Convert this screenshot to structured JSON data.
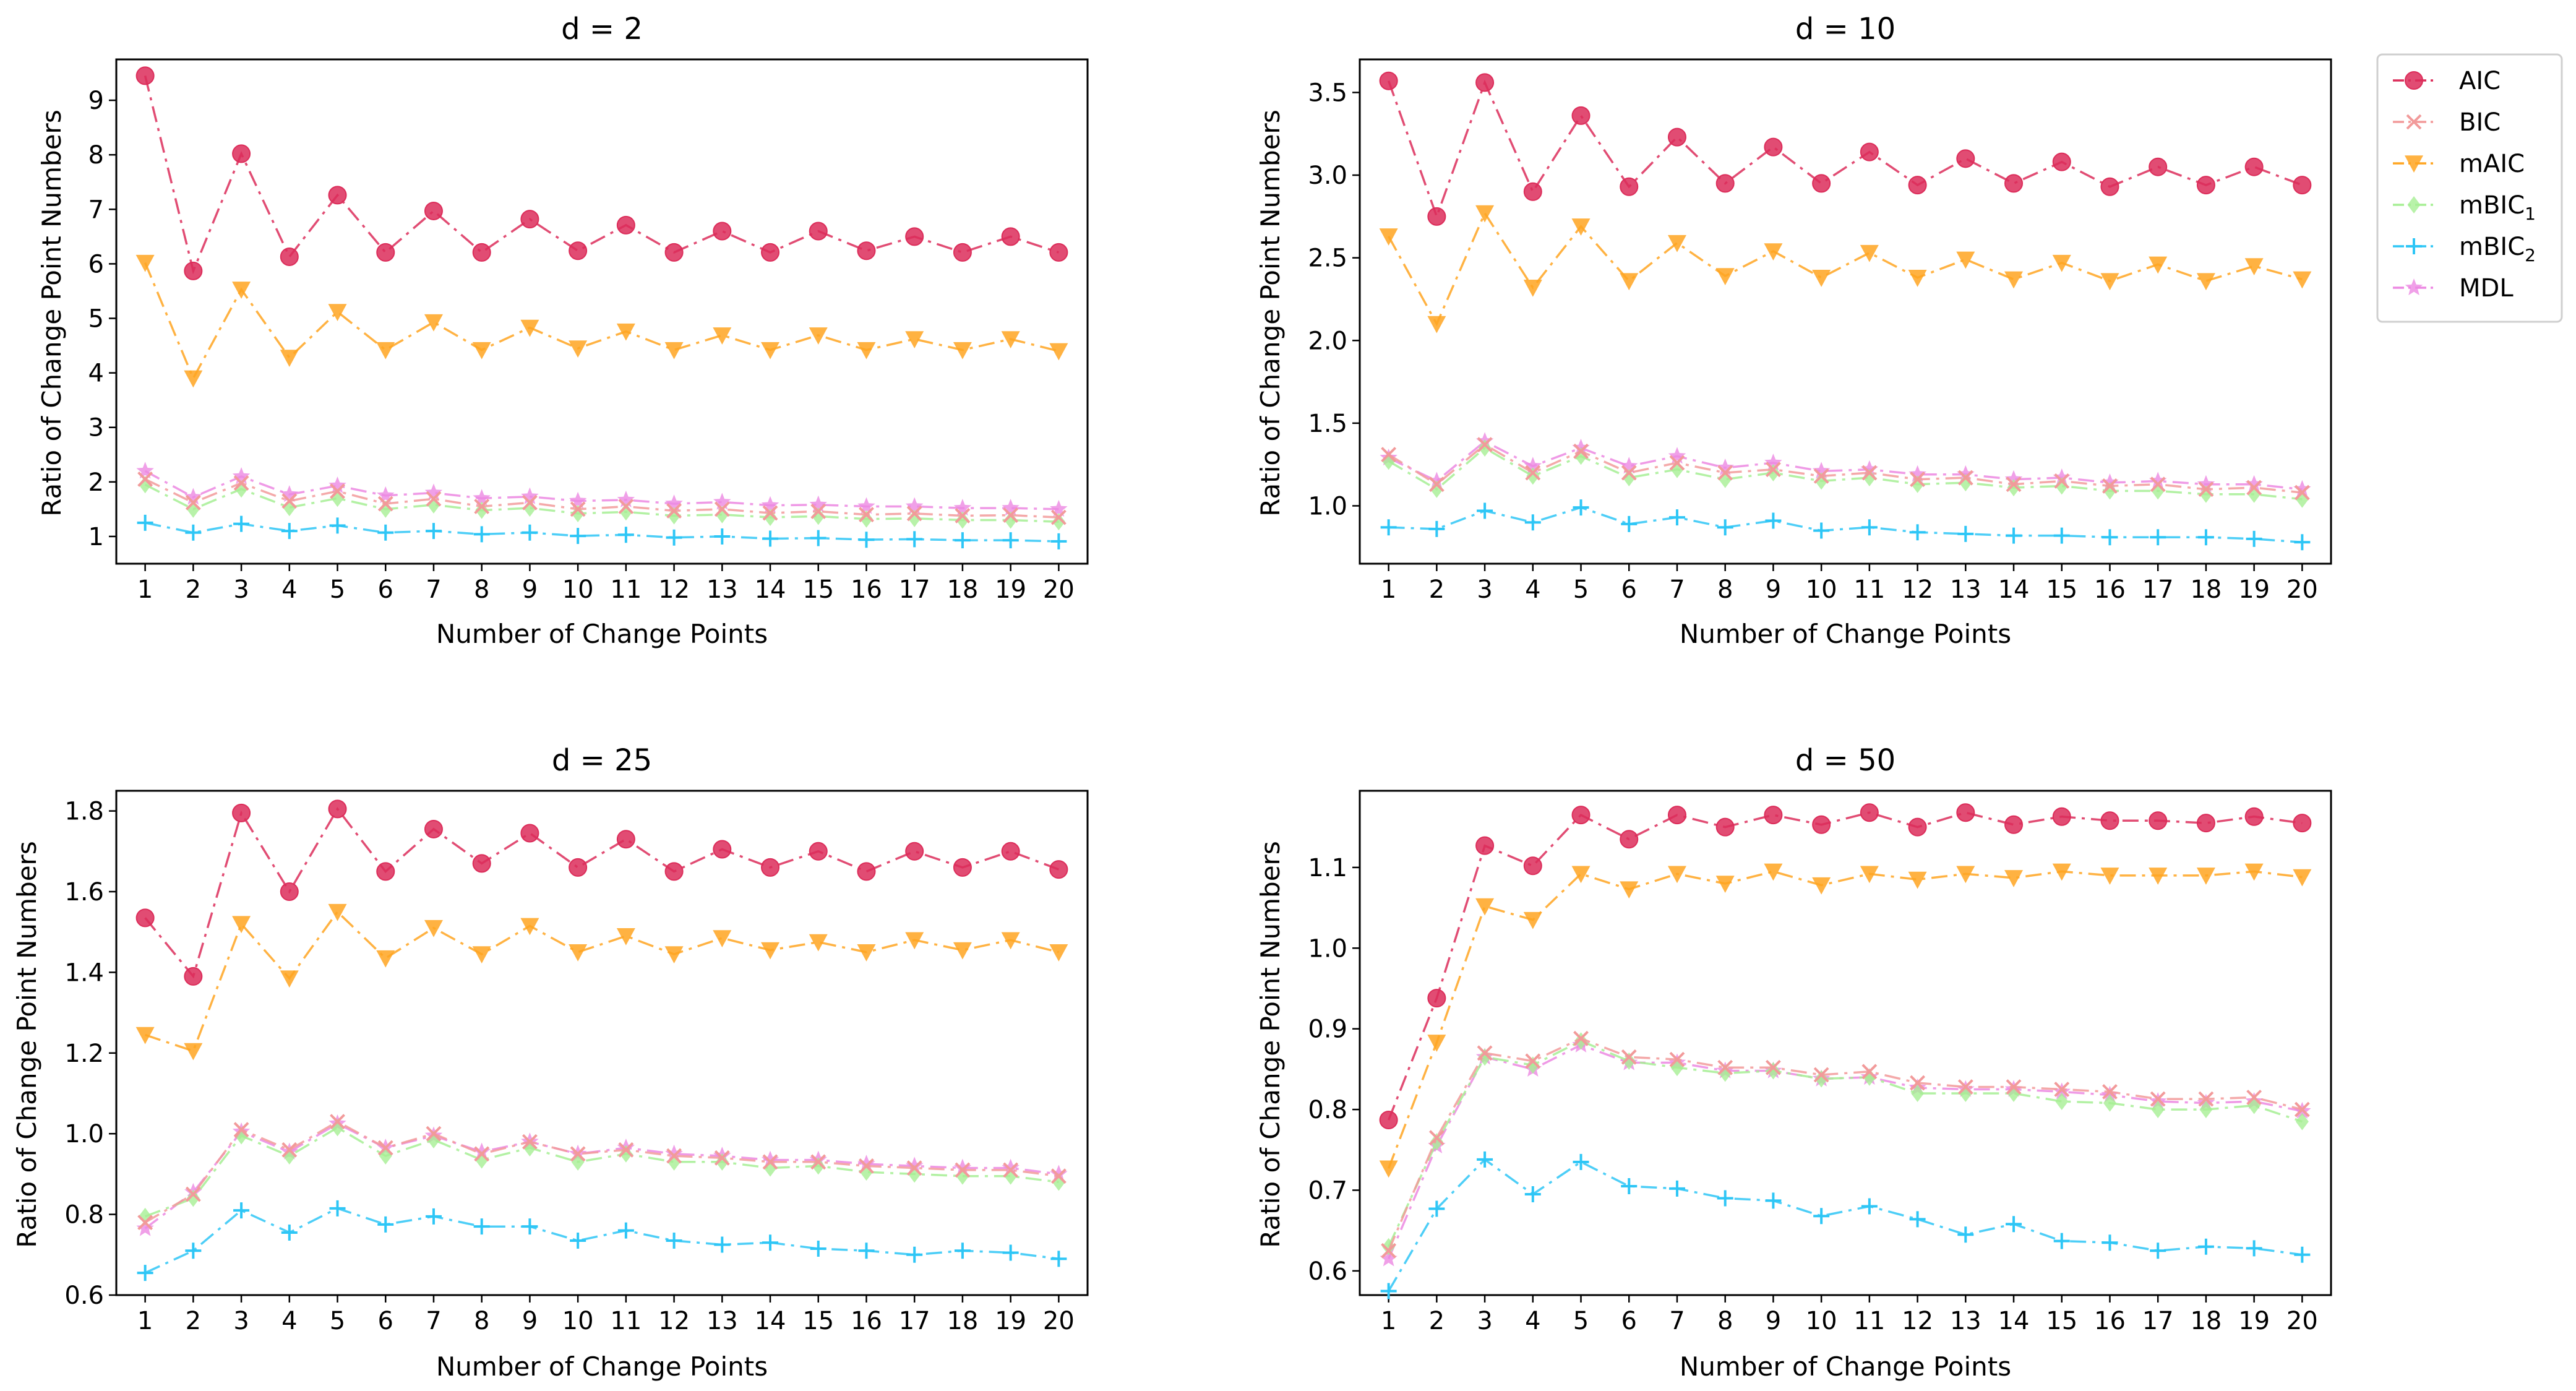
{
  "x_label": "Number of Change Points",
  "y_label": "Ratio of Change Point Numbers",
  "legend": [
    {
      "name": "AIC",
      "sub": "",
      "color": "#dc2d5a",
      "marker": "circle"
    },
    {
      "name": "BIC",
      "sub": "",
      "color": "#f29a9a",
      "marker": "x"
    },
    {
      "name": "mAIC",
      "sub": "",
      "color": "#ffa521",
      "marker": "triangle-down"
    },
    {
      "name": "mBIC",
      "sub": "1",
      "color": "#a6ef94",
      "marker": "diamond"
    },
    {
      "name": "mBIC",
      "sub": "2",
      "color": "#2ec6f6",
      "marker": "plus"
    },
    {
      "name": "MDL",
      "sub": "",
      "color": "#ec88e2",
      "marker": "star"
    }
  ],
  "chart_data": [
    {
      "type": "line",
      "title": "d = 2",
      "xlabel": "Number of Change Points",
      "ylabel": "Ratio of Change Point Numbers",
      "x": [
        1,
        2,
        3,
        4,
        5,
        6,
        7,
        8,
        9,
        10,
        11,
        12,
        13,
        14,
        15,
        16,
        17,
        18,
        19,
        20
      ],
      "ylim": [
        0.5,
        9.75
      ],
      "yticks": [
        1,
        2,
        3,
        4,
        5,
        6,
        7,
        8,
        9
      ],
      "ytick_labels": [
        "1",
        "2",
        "3",
        "4",
        "5",
        "6",
        "7",
        "8",
        "9"
      ],
      "series": [
        {
          "name": "AIC",
          "values": [
            9.45,
            5.87,
            8.02,
            6.13,
            7.26,
            6.21,
            6.97,
            6.21,
            6.82,
            6.24,
            6.71,
            6.21,
            6.6,
            6.21,
            6.6,
            6.24,
            6.5,
            6.21,
            6.5,
            6.21
          ]
        },
        {
          "name": "BIC",
          "values": [
            2.05,
            1.62,
            1.98,
            1.65,
            1.83,
            1.6,
            1.69,
            1.55,
            1.62,
            1.5,
            1.55,
            1.47,
            1.5,
            1.43,
            1.46,
            1.4,
            1.42,
            1.38,
            1.39,
            1.35
          ]
        },
        {
          "name": "mAIC",
          "values": [
            6.02,
            3.9,
            5.53,
            4.28,
            5.12,
            4.42,
            4.93,
            4.42,
            4.83,
            4.45,
            4.76,
            4.42,
            4.69,
            4.42,
            4.69,
            4.42,
            4.62,
            4.42,
            4.62,
            4.4
          ]
        },
        {
          "name": "mBIC1",
          "values": [
            1.95,
            1.5,
            1.87,
            1.53,
            1.7,
            1.5,
            1.58,
            1.48,
            1.52,
            1.42,
            1.45,
            1.38,
            1.4,
            1.35,
            1.37,
            1.32,
            1.33,
            1.3,
            1.3,
            1.27
          ]
        },
        {
          "name": "mBIC2",
          "values": [
            1.25,
            1.07,
            1.23,
            1.1,
            1.2,
            1.07,
            1.1,
            1.04,
            1.07,
            1.01,
            1.03,
            0.98,
            1.0,
            0.96,
            0.97,
            0.94,
            0.95,
            0.93,
            0.93,
            0.91
          ]
        },
        {
          "name": "MDL",
          "values": [
            2.2,
            1.72,
            2.1,
            1.77,
            1.93,
            1.75,
            1.8,
            1.7,
            1.73,
            1.65,
            1.67,
            1.6,
            1.63,
            1.57,
            1.58,
            1.55,
            1.55,
            1.52,
            1.52,
            1.5
          ]
        }
      ]
    },
    {
      "type": "line",
      "title": "d = 10",
      "xlabel": "Number of Change Points",
      "ylabel": "Ratio of Change Point Numbers",
      "x": [
        1,
        2,
        3,
        4,
        5,
        6,
        7,
        8,
        9,
        10,
        11,
        12,
        13,
        14,
        15,
        16,
        17,
        18,
        19,
        20
      ],
      "ylim": [
        0.65,
        3.7
      ],
      "yticks": [
        1.0,
        1.5,
        2.0,
        2.5,
        3.0,
        3.5
      ],
      "ytick_labels": [
        "1.0",
        "1.5",
        "2.0",
        "2.5",
        "3.0",
        "3.5"
      ],
      "series": [
        {
          "name": "AIC",
          "values": [
            3.57,
            2.75,
            3.56,
            2.9,
            3.36,
            2.93,
            3.23,
            2.95,
            3.17,
            2.95,
            3.14,
            2.94,
            3.1,
            2.95,
            3.08,
            2.93,
            3.05,
            2.94,
            3.05,
            2.94
          ]
        },
        {
          "name": "BIC",
          "values": [
            1.31,
            1.13,
            1.37,
            1.2,
            1.33,
            1.2,
            1.26,
            1.2,
            1.22,
            1.18,
            1.2,
            1.16,
            1.17,
            1.13,
            1.15,
            1.12,
            1.13,
            1.1,
            1.11,
            1.08
          ]
        },
        {
          "name": "mAIC",
          "values": [
            2.63,
            2.1,
            2.77,
            2.32,
            2.69,
            2.36,
            2.59,
            2.39,
            2.54,
            2.38,
            2.53,
            2.38,
            2.49,
            2.37,
            2.47,
            2.36,
            2.46,
            2.36,
            2.45,
            2.37
          ]
        },
        {
          "name": "mBIC1",
          "values": [
            1.27,
            1.1,
            1.35,
            1.18,
            1.3,
            1.17,
            1.22,
            1.16,
            1.2,
            1.15,
            1.17,
            1.13,
            1.14,
            1.11,
            1.12,
            1.09,
            1.09,
            1.07,
            1.07,
            1.04
          ]
        },
        {
          "name": "mBIC2",
          "values": [
            0.87,
            0.86,
            0.97,
            0.9,
            0.99,
            0.89,
            0.93,
            0.87,
            0.91,
            0.85,
            0.87,
            0.84,
            0.83,
            0.82,
            0.82,
            0.81,
            0.81,
            0.81,
            0.8,
            0.78
          ]
        },
        {
          "name": "MDL",
          "values": [
            1.29,
            1.15,
            1.39,
            1.24,
            1.35,
            1.24,
            1.3,
            1.23,
            1.26,
            1.21,
            1.22,
            1.19,
            1.19,
            1.16,
            1.17,
            1.14,
            1.15,
            1.13,
            1.13,
            1.1
          ]
        }
      ]
    },
    {
      "type": "line",
      "title": "d = 25",
      "xlabel": "Number of Change Points",
      "ylabel": "Ratio of Change Point Numbers",
      "x": [
        1,
        2,
        3,
        4,
        5,
        6,
        7,
        8,
        9,
        10,
        11,
        12,
        13,
        14,
        15,
        16,
        17,
        18,
        19,
        20
      ],
      "ylim": [
        0.6,
        1.85
      ],
      "yticks": [
        0.6,
        0.8,
        1.0,
        1.2,
        1.4,
        1.6,
        1.8
      ],
      "ytick_labels": [
        "0.6",
        "0.8",
        "1.0",
        "1.2",
        "1.4",
        "1.6",
        "1.8"
      ],
      "series": [
        {
          "name": "AIC",
          "values": [
            1.535,
            1.39,
            1.795,
            1.6,
            1.805,
            1.65,
            1.755,
            1.67,
            1.745,
            1.66,
            1.73,
            1.65,
            1.705,
            1.66,
            1.7,
            1.65,
            1.7,
            1.66,
            1.7,
            1.655
          ]
        },
        {
          "name": "BIC",
          "values": [
            0.78,
            0.85,
            1.01,
            0.96,
            1.03,
            0.965,
            1.0,
            0.95,
            0.98,
            0.95,
            0.96,
            0.945,
            0.94,
            0.93,
            0.93,
            0.92,
            0.915,
            0.91,
            0.91,
            0.895
          ]
        },
        {
          "name": "mAIC",
          "values": [
            1.245,
            1.205,
            1.52,
            1.385,
            1.55,
            1.435,
            1.51,
            1.445,
            1.515,
            1.45,
            1.49,
            1.445,
            1.485,
            1.455,
            1.475,
            1.45,
            1.48,
            1.455,
            1.48,
            1.45
          ]
        },
        {
          "name": "mBIC1",
          "values": [
            0.795,
            0.84,
            0.995,
            0.945,
            1.015,
            0.945,
            0.985,
            0.935,
            0.965,
            0.93,
            0.95,
            0.93,
            0.93,
            0.915,
            0.92,
            0.905,
            0.9,
            0.895,
            0.895,
            0.88
          ]
        },
        {
          "name": "mBIC2",
          "values": [
            0.655,
            0.71,
            0.81,
            0.755,
            0.815,
            0.775,
            0.795,
            0.77,
            0.77,
            0.735,
            0.76,
            0.735,
            0.725,
            0.73,
            0.715,
            0.71,
            0.7,
            0.71,
            0.705,
            0.69
          ]
        },
        {
          "name": "MDL",
          "values": [
            0.765,
            0.855,
            1.005,
            0.955,
            1.025,
            0.965,
            0.995,
            0.955,
            0.98,
            0.95,
            0.965,
            0.95,
            0.945,
            0.935,
            0.935,
            0.925,
            0.92,
            0.915,
            0.915,
            0.9
          ]
        }
      ]
    },
    {
      "type": "line",
      "title": "d = 50",
      "xlabel": "Number of Change Points",
      "ylabel": "Ratio of Change Point Numbers",
      "x": [
        1,
        2,
        3,
        4,
        5,
        6,
        7,
        8,
        9,
        10,
        11,
        12,
        13,
        14,
        15,
        16,
        17,
        18,
        19,
        20
      ],
      "ylim": [
        0.57,
        1.195
      ],
      "yticks": [
        0.6,
        0.7,
        0.8,
        0.9,
        1.0,
        1.1
      ],
      "ytick_labels": [
        "0.6",
        "0.7",
        "0.8",
        "0.9",
        "1.0",
        "1.1"
      ],
      "series": [
        {
          "name": "AIC",
          "values": [
            0.787,
            0.938,
            1.127,
            1.102,
            1.165,
            1.135,
            1.165,
            1.15,
            1.165,
            1.153,
            1.168,
            1.15,
            1.168,
            1.153,
            1.163,
            1.158,
            1.158,
            1.155,
            1.163,
            1.155
          ]
        },
        {
          "name": "BIC",
          "values": [
            0.625,
            0.765,
            0.87,
            0.86,
            0.888,
            0.865,
            0.862,
            0.852,
            0.852,
            0.843,
            0.847,
            0.833,
            0.828,
            0.828,
            0.825,
            0.822,
            0.813,
            0.813,
            0.815,
            0.8
          ]
        },
        {
          "name": "mAIC",
          "values": [
            0.727,
            0.883,
            1.052,
            1.035,
            1.092,
            1.073,
            1.092,
            1.08,
            1.095,
            1.078,
            1.092,
            1.085,
            1.092,
            1.087,
            1.095,
            1.09,
            1.09,
            1.09,
            1.095,
            1.088
          ]
        },
        {
          "name": "mBIC1",
          "values": [
            0.63,
            0.76,
            0.865,
            0.855,
            0.885,
            0.86,
            0.852,
            0.845,
            0.848,
            0.838,
            0.84,
            0.82,
            0.82,
            0.82,
            0.81,
            0.808,
            0.8,
            0.8,
            0.805,
            0.785
          ]
        },
        {
          "name": "mBIC2",
          "values": [
            0.575,
            0.677,
            0.738,
            0.695,
            0.735,
            0.705,
            0.702,
            0.69,
            0.687,
            0.668,
            0.68,
            0.664,
            0.645,
            0.658,
            0.637,
            0.635,
            0.625,
            0.63,
            0.628,
            0.62
          ]
        },
        {
          "name": "MDL",
          "values": [
            0.615,
            0.755,
            0.865,
            0.85,
            0.88,
            0.858,
            0.858,
            0.848,
            0.848,
            0.838,
            0.84,
            0.827,
            0.825,
            0.825,
            0.822,
            0.818,
            0.81,
            0.808,
            0.81,
            0.798
          ]
        }
      ]
    }
  ]
}
